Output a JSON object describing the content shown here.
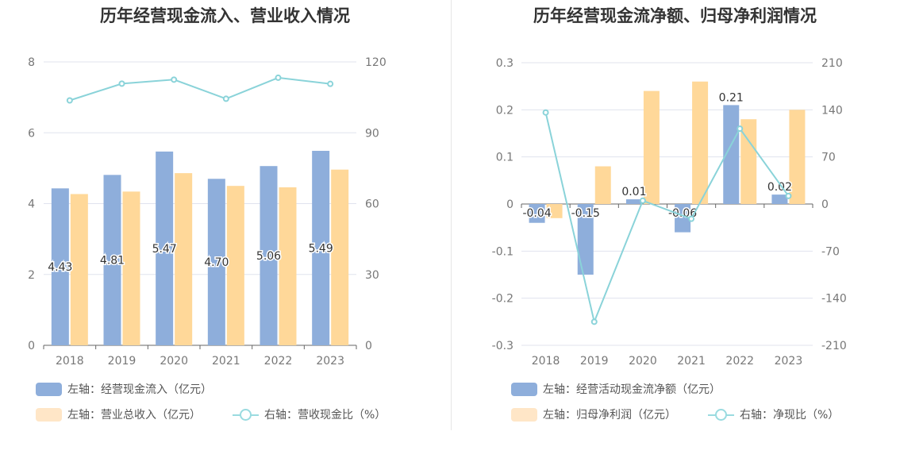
{
  "colors": {
    "bar_primary": "#8eaedb",
    "bar_secondary": "#ffd899",
    "line": "#8ad3d9",
    "legend_bar_primary": "#8eaedb",
    "legend_bar_secondary": "#ffe6c7"
  },
  "chart_data": [
    {
      "type": "bar",
      "title": "历年经营现金流入、营业收入情况",
      "categories": [
        "2018",
        "2019",
        "2020",
        "2021",
        "2022",
        "2023"
      ],
      "left_axis": {
        "range": [
          0,
          8
        ],
        "ticks": [
          "0",
          "2",
          "4",
          "6",
          "8"
        ]
      },
      "right_axis": {
        "range": [
          0,
          120
        ],
        "ticks": [
          "0",
          "30",
          "60",
          "90",
          "120"
        ]
      },
      "series": [
        {
          "name": "左轴：经营现金流入（亿元）",
          "kind": "bar",
          "axis": "left",
          "values": [
            4.43,
            4.81,
            5.47,
            4.7,
            5.06,
            5.49
          ],
          "labels": [
            "4.43",
            "4.81",
            "5.47",
            "4.70",
            "5.06",
            "5.49"
          ]
        },
        {
          "name": "左轴：营业总收入（亿元）",
          "kind": "bar",
          "axis": "left",
          "values": [
            4.27,
            4.34,
            4.86,
            4.5,
            4.46,
            4.96
          ]
        },
        {
          "name": "右轴：营收现金比（%）",
          "kind": "line",
          "axis": "right",
          "values": [
            103.7,
            110.8,
            112.5,
            104.4,
            113.3,
            110.7
          ]
        }
      ],
      "grid": true,
      "legend_position": "bottom-left"
    },
    {
      "type": "bar",
      "title": "历年经营现金流净额、归母净利润情况",
      "categories": [
        "2018",
        "2019",
        "2020",
        "2021",
        "2022",
        "2023"
      ],
      "left_axis": {
        "range": [
          -0.3,
          0.3
        ],
        "ticks": [
          "-0.3",
          "-0.2",
          "-0.1",
          "0",
          "0.1",
          "0.2",
          "0.3"
        ]
      },
      "right_axis": {
        "range": [
          -210,
          210
        ],
        "ticks": [
          "-210",
          "-140",
          "-70",
          "0",
          "70",
          "140",
          "210"
        ]
      },
      "series": [
        {
          "name": "左轴：经营活动现金流净额（亿元）",
          "kind": "bar",
          "axis": "left",
          "values": [
            -0.04,
            -0.15,
            0.01,
            -0.06,
            0.21,
            0.02
          ],
          "labels": [
            "-0.04",
            "-0.15",
            "0.01",
            "-0.06",
            "0.21",
            "0.02"
          ]
        },
        {
          "name": "左轴：归母净利润（亿元）",
          "kind": "bar",
          "axis": "left",
          "values": [
            -0.03,
            0.08,
            0.24,
            0.26,
            0.18,
            0.2
          ]
        },
        {
          "name": "右轴：净现比（%）",
          "kind": "line",
          "axis": "right",
          "values": [
            136.0,
            -175.0,
            5.0,
            -22.0,
            112.0,
            12.0
          ]
        }
      ],
      "grid": true,
      "legend_position": "bottom-left"
    }
  ]
}
